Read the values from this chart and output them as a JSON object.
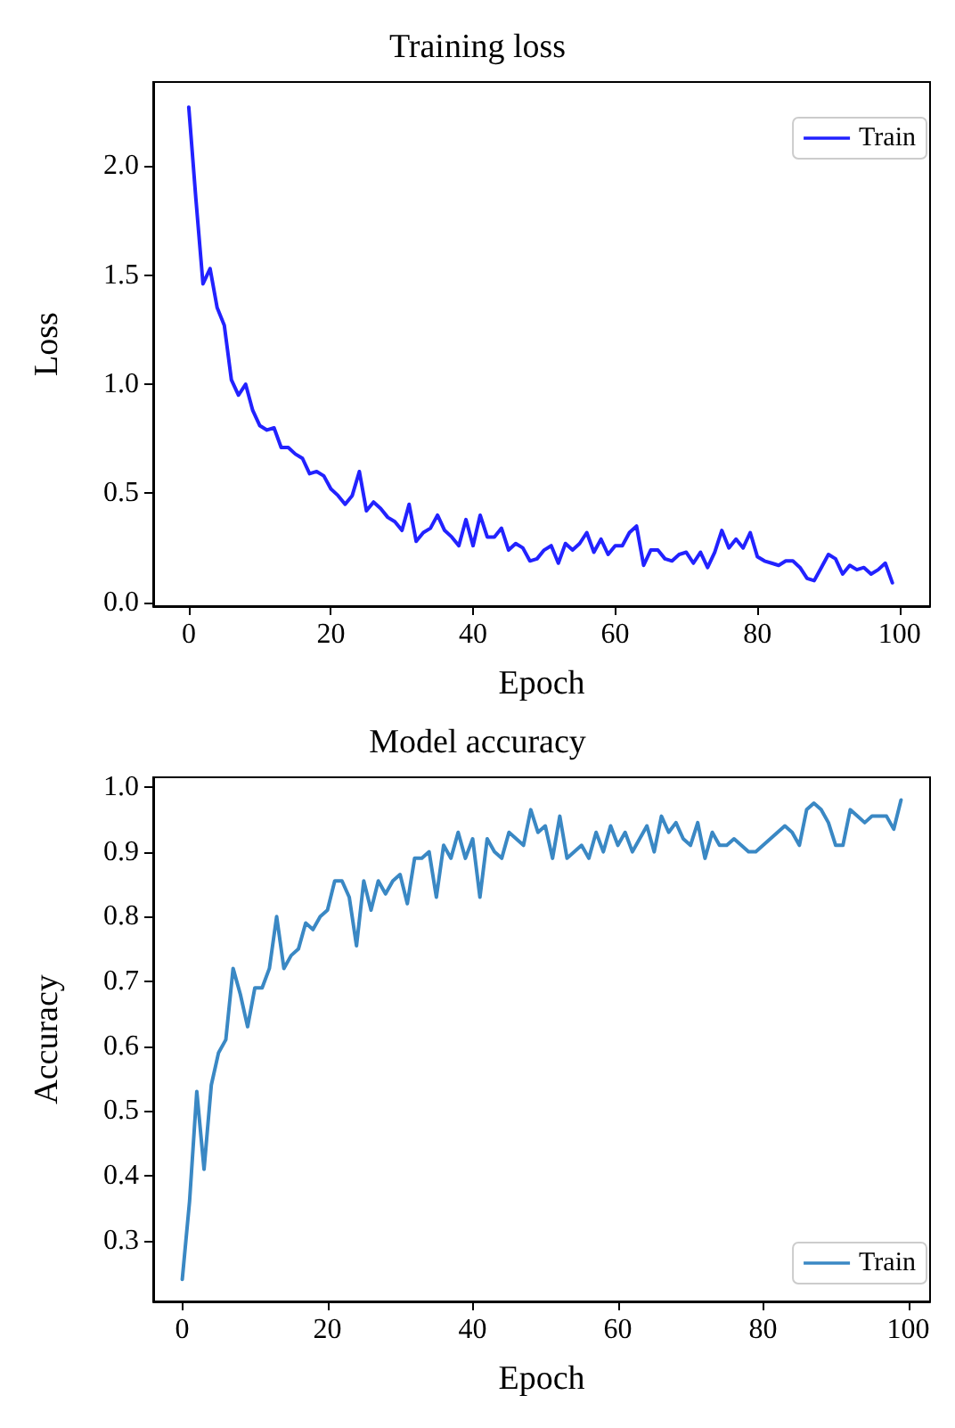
{
  "chart_data": [
    {
      "type": "line",
      "title": "Training loss",
      "xlabel": "Epoch",
      "ylabel": "Loss",
      "legend": "top right",
      "grid": false,
      "xlim": [
        -5,
        104.3
      ],
      "ylim": [
        -0.017,
        2.385
      ],
      "xticks": [
        0,
        20,
        40,
        60,
        80,
        100
      ],
      "yticks": [
        {
          "value": 0,
          "label": "0.0"
        },
        0.5,
        {
          "value": 1,
          "label": "1.0"
        },
        1.5,
        {
          "value": 2,
          "label": "2.0"
        }
      ],
      "x": [
        0,
        1,
        2,
        3,
        4,
        5,
        6,
        7,
        8,
        9,
        10,
        11,
        12,
        13,
        14,
        15,
        16,
        17,
        18,
        19,
        20,
        21,
        22,
        23,
        24,
        25,
        26,
        27,
        28,
        29,
        30,
        31,
        32,
        33,
        34,
        35,
        36,
        37,
        38,
        39,
        40,
        41,
        42,
        43,
        44,
        45,
        46,
        47,
        48,
        49,
        50,
        51,
        52,
        53,
        54,
        55,
        56,
        57,
        58,
        59,
        60,
        61,
        62,
        63,
        64,
        65,
        66,
        67,
        68,
        69,
        70,
        71,
        72,
        73,
        74,
        75,
        76,
        77,
        78,
        79,
        80,
        81,
        82,
        83,
        84,
        85,
        86,
        87,
        88,
        89,
        90,
        91,
        92,
        93,
        94,
        95,
        96,
        97,
        98,
        99
      ],
      "series": [
        {
          "name": "Train",
          "color": "#2222ff",
          "values": [
            2.27,
            1.85,
            1.46,
            1.53,
            1.35,
            1.27,
            1.02,
            0.95,
            1.0,
            0.88,
            0.81,
            0.79,
            0.8,
            0.71,
            0.71,
            0.68,
            0.66,
            0.59,
            0.6,
            0.58,
            0.52,
            0.49,
            0.45,
            0.49,
            0.6,
            0.42,
            0.46,
            0.43,
            0.39,
            0.37,
            0.33,
            0.45,
            0.28,
            0.32,
            0.34,
            0.4,
            0.33,
            0.3,
            0.26,
            0.38,
            0.26,
            0.4,
            0.3,
            0.3,
            0.34,
            0.24,
            0.27,
            0.25,
            0.19,
            0.2,
            0.24,
            0.26,
            0.18,
            0.27,
            0.24,
            0.27,
            0.32,
            0.23,
            0.29,
            0.22,
            0.26,
            0.26,
            0.32,
            0.35,
            0.17,
            0.24,
            0.24,
            0.2,
            0.19,
            0.22,
            0.23,
            0.18,
            0.23,
            0.16,
            0.23,
            0.33,
            0.25,
            0.29,
            0.25,
            0.32,
            0.21,
            0.19,
            0.18,
            0.17,
            0.19,
            0.19,
            0.16,
            0.11,
            0.1,
            0.16,
            0.22,
            0.2,
            0.13,
            0.17,
            0.15,
            0.16,
            0.13,
            0.15,
            0.18,
            0.09
          ]
        }
      ]
    },
    {
      "type": "line",
      "title": "Model accuracy",
      "xlabel": "Epoch",
      "ylabel": "Accuracy",
      "legend": "bottom right",
      "grid": false,
      "xlim": [
        -4,
        103
      ],
      "ylim": [
        0.206,
        1.015
      ],
      "xticks": [
        0,
        20,
        40,
        60,
        80,
        100
      ],
      "yticks": [
        0.3,
        0.4,
        0.5,
        0.6,
        0.7,
        0.8,
        0.9,
        {
          "value": 1,
          "label": "1.0"
        }
      ],
      "x": [
        0,
        1,
        2,
        3,
        4,
        5,
        6,
        7,
        8,
        9,
        10,
        11,
        12,
        13,
        14,
        15,
        16,
        17,
        18,
        19,
        20,
        21,
        22,
        23,
        24,
        25,
        26,
        27,
        28,
        29,
        30,
        31,
        32,
        33,
        34,
        35,
        36,
        37,
        38,
        39,
        40,
        41,
        42,
        43,
        44,
        45,
        46,
        47,
        48,
        49,
        50,
        51,
        52,
        53,
        54,
        55,
        56,
        57,
        58,
        59,
        60,
        61,
        62,
        63,
        64,
        65,
        66,
        67,
        68,
        69,
        70,
        71,
        72,
        73,
        74,
        75,
        76,
        77,
        78,
        79,
        80,
        81,
        82,
        83,
        84,
        85,
        86,
        87,
        88,
        89,
        90,
        91,
        92,
        93,
        94,
        95,
        96,
        97,
        98,
        99
      ],
      "series": [
        {
          "name": "Train",
          "color": "#3a88c4",
          "values": [
            0.24,
            0.36,
            0.53,
            0.41,
            0.54,
            0.59,
            0.61,
            0.72,
            0.68,
            0.63,
            0.69,
            0.69,
            0.72,
            0.8,
            0.72,
            0.74,
            0.75,
            0.79,
            0.78,
            0.8,
            0.81,
            0.855,
            0.855,
            0.83,
            0.755,
            0.855,
            0.81,
            0.855,
            0.835,
            0.855,
            0.865,
            0.82,
            0.89,
            0.89,
            0.9,
            0.83,
            0.91,
            0.89,
            0.93,
            0.89,
            0.92,
            0.83,
            0.92,
            0.9,
            0.89,
            0.93,
            0.92,
            0.91,
            0.965,
            0.93,
            0.94,
            0.89,
            0.955,
            0.89,
            0.9,
            0.91,
            0.89,
            0.93,
            0.9,
            0.94,
            0.91,
            0.93,
            0.9,
            0.92,
            0.94,
            0.9,
            0.955,
            0.93,
            0.945,
            0.92,
            0.91,
            0.945,
            0.89,
            0.93,
            0.91,
            0.91,
            0.92,
            0.91,
            0.9,
            0.9,
            0.91,
            0.92,
            0.93,
            0.94,
            0.93,
            0.91,
            0.965,
            0.975,
            0.965,
            0.945,
            0.91,
            0.91,
            0.965,
            0.955,
            0.945,
            0.955,
            0.955,
            0.955,
            0.935,
            0.98
          ]
        }
      ]
    }
  ]
}
